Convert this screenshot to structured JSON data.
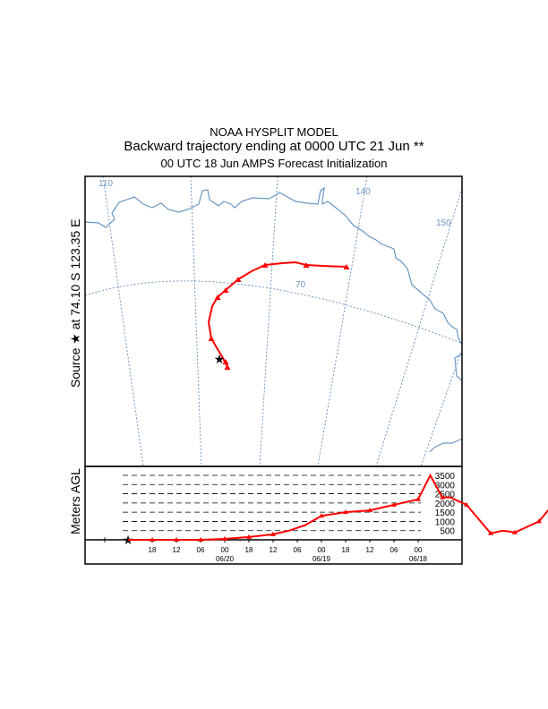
{
  "header": {
    "model": "NOAA HYSPLIT MODEL",
    "title": "Backward trajectory ending at 0000 UTC 21 Jun **",
    "subtitle": "00 UTC 18 Jun    AMPS  Forecast Initialization"
  },
  "map": {
    "source_label": "Source  ★  at    74.10 S  123.35 E",
    "meridian_labels": [
      "110",
      "140",
      "150"
    ],
    "parallel_labels": [
      "70"
    ],
    "colors": {
      "trajectory": "#ff0000",
      "coast": "#6a97c4",
      "grid": "#4f7fae"
    }
  },
  "chart_data": {
    "type": "line",
    "ylabel": "Meters AGL",
    "yticks": [
      500,
      1000,
      1500,
      2000,
      2500,
      3000,
      3500
    ],
    "ylim": [
      0,
      3700
    ],
    "xticks": [
      "18",
      "12",
      "06",
      "00",
      "18",
      "12",
      "06",
      "00",
      "18",
      "12",
      "06",
      "00"
    ],
    "date_labels": [
      "06/20",
      "06/19",
      "06/18"
    ],
    "x_hours_back": [
      0,
      6,
      12,
      18,
      24,
      30,
      36,
      40,
      44,
      48,
      54,
      60,
      66,
      72,
      75,
      78,
      80,
      84,
      90,
      93,
      96,
      102,
      108
    ],
    "height_m": [
      0,
      0,
      0,
      0,
      50,
      150,
      300,
      500,
      800,
      1300,
      1500,
      1600,
      1900,
      2200,
      3500,
      2300,
      2300,
      1900,
      350,
      500,
      400,
      1000,
      2600
    ]
  }
}
